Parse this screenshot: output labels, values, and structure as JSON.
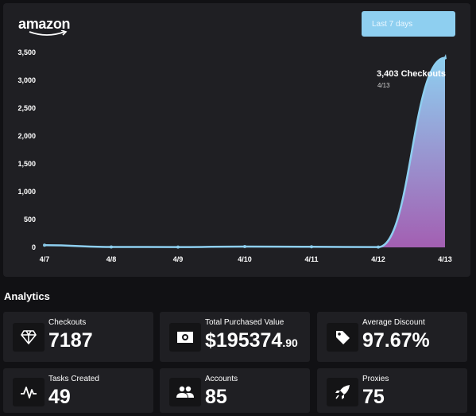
{
  "brand": {
    "logo_text": "amazon"
  },
  "range_button": {
    "label": "Last 7 days"
  },
  "chart_data": {
    "type": "area",
    "x": [
      "4/7",
      "4/8",
      "4/9",
      "4/10",
      "4/11",
      "4/12",
      "4/13"
    ],
    "series": [
      {
        "values": [
          40,
          8,
          5,
          15,
          10,
          5,
          3403
        ]
      }
    ],
    "y_ticks": [
      "0",
      "500",
      "1,000",
      "1,500",
      "2,000",
      "2,500",
      "3,000",
      "3,500"
    ],
    "ylim": [
      0,
      3500
    ],
    "legend": "none",
    "grid": false,
    "tooltip": {
      "title": "3,403 Checkouts",
      "subtitle": "4/13"
    },
    "colors": {
      "line": "#8ecff0",
      "fill_top": "#8ecff0",
      "fill_bottom": "#a35fb2"
    }
  },
  "analytics": {
    "title": "Analytics",
    "cards": [
      {
        "label": "Checkouts",
        "value": "7187",
        "icon": "diamond-icon"
      },
      {
        "label": "Total Purchased Value",
        "value": "$195374",
        "value_small": ".90",
        "icon": "cash-icon"
      },
      {
        "label": "Average Discount",
        "value": "97.67%",
        "icon": "tag-icon"
      },
      {
        "label": "Tasks Created",
        "value": "49",
        "icon": "pulse-icon"
      },
      {
        "label": "Accounts",
        "value": "85",
        "icon": "users-icon"
      },
      {
        "label": "Proxies",
        "value": "75",
        "icon": "rocket-icon"
      }
    ]
  }
}
